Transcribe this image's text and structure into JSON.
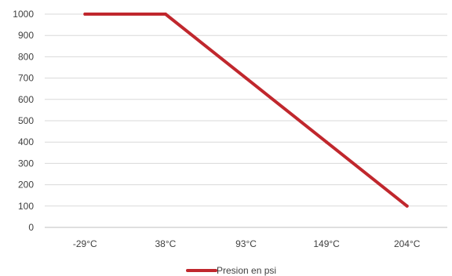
{
  "chart_data": {
    "type": "line",
    "categories": [
      "-29°C",
      "38°C",
      "93°C",
      "149°C",
      "204°C"
    ],
    "series": [
      {
        "name": "Presion en psi",
        "values": [
          1000,
          1000,
          700,
          400,
          100
        ],
        "color": "#C0272D"
      }
    ],
    "y_ticks": [
      "0",
      "100",
      "200",
      "300",
      "400",
      "500",
      "600",
      "700",
      "800",
      "900",
      "1000"
    ],
    "ylim": [
      0,
      1000
    ],
    "grid": true,
    "legend_position": "bottom"
  }
}
